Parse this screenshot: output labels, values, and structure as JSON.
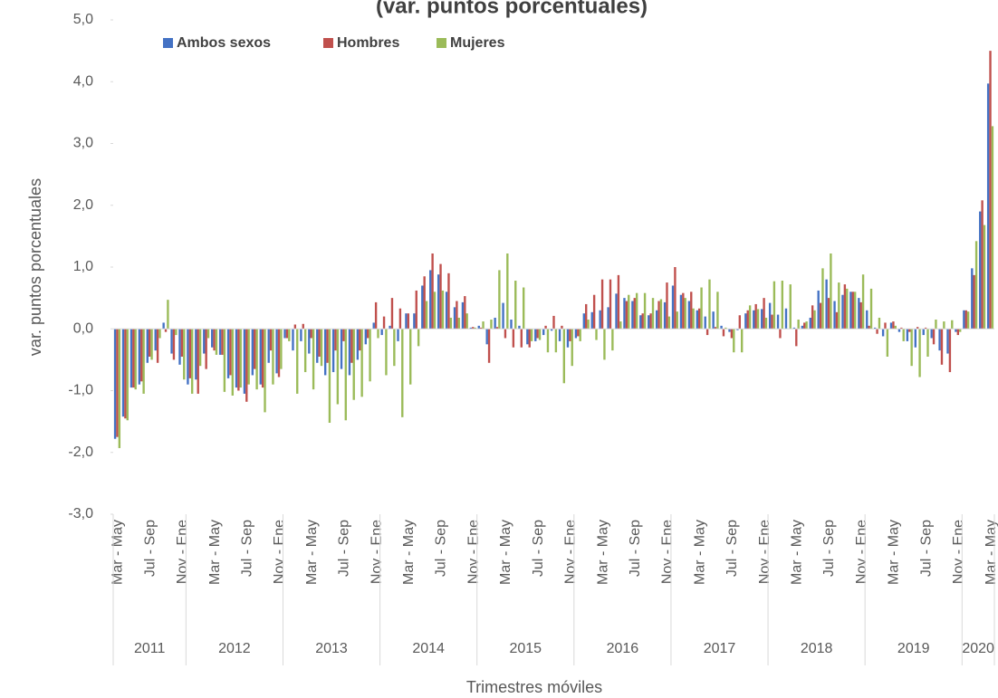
{
  "chart_data": {
    "type": "bar",
    "title": "(var. puntos porcentuales)",
    "y_label": "var. puntos porcentuales",
    "x_label": "Trimestres móviles",
    "categories": [
      "Mar - May",
      null,
      null,
      null,
      "Jul - Sep",
      null,
      null,
      null,
      "Nov - Ene",
      null,
      null,
      null,
      "Mar - May",
      null,
      null,
      null,
      "Jul - Sep",
      null,
      null,
      null,
      "Nov - Ene",
      null,
      null,
      null,
      "Mar - May",
      null,
      null,
      null,
      "Jul - Sep",
      null,
      null,
      null,
      "Nov - Ene",
      null,
      null,
      null,
      "Mar - May",
      null,
      null,
      null,
      "Jul - Sep",
      null,
      null,
      null,
      "Nov - Ene",
      null,
      null,
      null,
      "Mar - May",
      null,
      null,
      null,
      "Jul - Sep",
      null,
      null,
      null,
      "Nov - Ene",
      null,
      null,
      null,
      "Mar - May",
      null,
      null,
      null,
      "Jul - Sep",
      null,
      null,
      null,
      "Nov - Ene",
      null,
      null,
      null,
      "Mar - May",
      null,
      null,
      null,
      "Jul - Sep",
      null,
      null,
      null,
      "Nov - Ene",
      null,
      null,
      null,
      "Mar - May",
      null,
      null,
      null,
      "Jul - Sep",
      null,
      null,
      null,
      "Nov - Ene",
      null,
      null,
      null,
      "Mar - May",
      null,
      null,
      null,
      "Jul - Sep",
      null,
      null,
      null,
      "Nov - Ene",
      null,
      null,
      null,
      "Mar - May"
    ],
    "groups": [
      {
        "label": "2011",
        "count": 9
      },
      {
        "label": "2012",
        "count": 12
      },
      {
        "label": "2013",
        "count": 12
      },
      {
        "label": "2014",
        "count": 12
      },
      {
        "label": "2015",
        "count": 12
      },
      {
        "label": "2016",
        "count": 12
      },
      {
        "label": "2017",
        "count": 12
      },
      {
        "label": "2018",
        "count": 12
      },
      {
        "label": "2019",
        "count": 12
      },
      {
        "label": "2020",
        "count": 4
      }
    ],
    "series": [
      {
        "name": "Ambos sexos",
        "color": "#4472c4",
        "values": [
          -1.78,
          -1.42,
          -0.95,
          -0.9,
          -0.55,
          -0.35,
          0.1,
          -0.4,
          -0.58,
          -0.9,
          -0.82,
          -0.4,
          -0.3,
          -0.42,
          -0.8,
          -0.95,
          -1.05,
          -0.75,
          -0.9,
          -0.55,
          -0.72,
          -0.15,
          -0.35,
          -0.2,
          -0.4,
          -0.55,
          -0.75,
          -0.7,
          -0.65,
          -0.75,
          -0.5,
          -0.25,
          0.1,
          -0.1,
          0.05,
          -0.2,
          0.25,
          0.25,
          0.7,
          0.95,
          0.88,
          0.6,
          0.35,
          0.43,
          0.02,
          0.05,
          -0.25,
          0.18,
          0.42,
          0.15,
          0.05,
          -0.25,
          -0.2,
          -0.1,
          -0.03,
          -0.2,
          -0.3,
          -0.15,
          0.25,
          0.27,
          0.3,
          0.35,
          0.57,
          0.5,
          0.45,
          0.22,
          0.22,
          0.3,
          0.43,
          0.7,
          0.55,
          0.45,
          0.3,
          0.2,
          0.28,
          0.05,
          -0.05,
          -0.02,
          0.25,
          0.3,
          0.32,
          0.42,
          0.23,
          0.33,
          0.02,
          0.05,
          0.18,
          0.62,
          0.8,
          0.45,
          0.55,
          0.6,
          0.5,
          0.3,
          0.02,
          -0.12,
          0.1,
          -0.05,
          -0.2,
          -0.3,
          -0.1,
          -0.15,
          -0.35,
          -0.4,
          -0.05,
          0.3,
          0.98,
          1.9,
          3.97
        ]
      },
      {
        "name": "Hombres",
        "color": "#c0504d",
        "values": [
          -1.75,
          -1.45,
          -0.95,
          -0.85,
          -0.45,
          -0.55,
          -0.05,
          -0.5,
          -0.45,
          -0.8,
          -1.05,
          -0.65,
          -0.35,
          -0.42,
          -0.75,
          -1.0,
          -1.18,
          -0.65,
          -0.95,
          -0.35,
          -0.78,
          -0.15,
          0.07,
          0.08,
          -0.15,
          -0.45,
          -0.55,
          -0.35,
          -0.2,
          -0.55,
          -0.35,
          -0.15,
          0.43,
          0.2,
          0.5,
          0.33,
          0.25,
          0.62,
          0.85,
          1.22,
          1.05,
          0.9,
          0.45,
          0.53,
          0.03,
          0.02,
          -0.55,
          0.03,
          -0.15,
          -0.3,
          -0.3,
          -0.3,
          -0.15,
          0.05,
          0.21,
          0.05,
          -0.2,
          -0.12,
          0.4,
          0.55,
          0.8,
          0.8,
          0.87,
          0.45,
          0.5,
          0.25,
          0.25,
          0.45,
          0.75,
          1.0,
          0.58,
          0.6,
          0.33,
          -0.1,
          0.03,
          -0.12,
          -0.15,
          0.22,
          0.3,
          0.4,
          0.5,
          0.23,
          -0.15,
          0.0,
          -0.28,
          0.1,
          0.38,
          0.42,
          0.5,
          0.27,
          0.72,
          0.6,
          0.43,
          0.05,
          -0.08,
          0.1,
          0.12,
          0.02,
          -0.05,
          0.03,
          0.02,
          -0.25,
          -0.58,
          -0.7,
          -0.1,
          0.3,
          0.87,
          2.08,
          4.5
        ]
      },
      {
        "name": "Mujeres",
        "color": "#9bbb59",
        "values": [
          -1.93,
          -1.48,
          -0.98,
          -1.05,
          -0.5,
          -0.15,
          0.47,
          -0.1,
          -0.82,
          -1.05,
          -0.6,
          -0.15,
          -0.42,
          -1.02,
          -1.08,
          -0.95,
          -0.9,
          -0.98,
          -1.35,
          -0.9,
          -0.65,
          -0.2,
          -1.05,
          -0.7,
          -0.98,
          -0.6,
          -1.52,
          -1.22,
          -1.48,
          -1.15,
          -1.1,
          -0.85,
          -0.15,
          -0.75,
          -0.6,
          -1.43,
          -0.9,
          -0.28,
          0.45,
          0.6,
          0.62,
          0.18,
          0.18,
          0.25,
          0.02,
          0.12,
          0.15,
          0.95,
          1.22,
          0.78,
          0.67,
          -0.2,
          -0.18,
          -0.38,
          -0.38,
          -0.88,
          -0.6,
          -0.2,
          0.15,
          -0.18,
          -0.5,
          -0.35,
          0.12,
          0.55,
          0.58,
          0.58,
          0.5,
          0.48,
          0.2,
          0.28,
          0.5,
          0.33,
          0.67,
          0.8,
          0.6,
          0.02,
          -0.38,
          -0.38,
          0.38,
          0.32,
          0.18,
          0.77,
          0.78,
          0.72,
          0.15,
          0.12,
          0.3,
          0.98,
          1.22,
          0.75,
          0.65,
          0.6,
          0.88,
          0.65,
          0.18,
          -0.45,
          0.05,
          -0.2,
          -0.6,
          -0.78,
          -0.45,
          0.15,
          0.12,
          0.14,
          -0.05,
          0.28,
          1.42,
          1.68,
          3.28
        ]
      }
    ],
    "ylim": [
      -3,
      5
    ],
    "yticks": [
      {
        "value": -3,
        "label": "-3,0"
      },
      {
        "value": -2,
        "label": "-2,0"
      },
      {
        "value": -1,
        "label": "-1,0"
      },
      {
        "value": 0,
        "label": "0,0"
      },
      {
        "value": 1,
        "label": "1,0"
      },
      {
        "value": 2,
        "label": "2,0"
      },
      {
        "value": 3,
        "label": "3,0"
      },
      {
        "value": 4,
        "label": "4,0"
      },
      {
        "value": 5,
        "label": "5,0"
      }
    ],
    "legend": "top-left"
  }
}
